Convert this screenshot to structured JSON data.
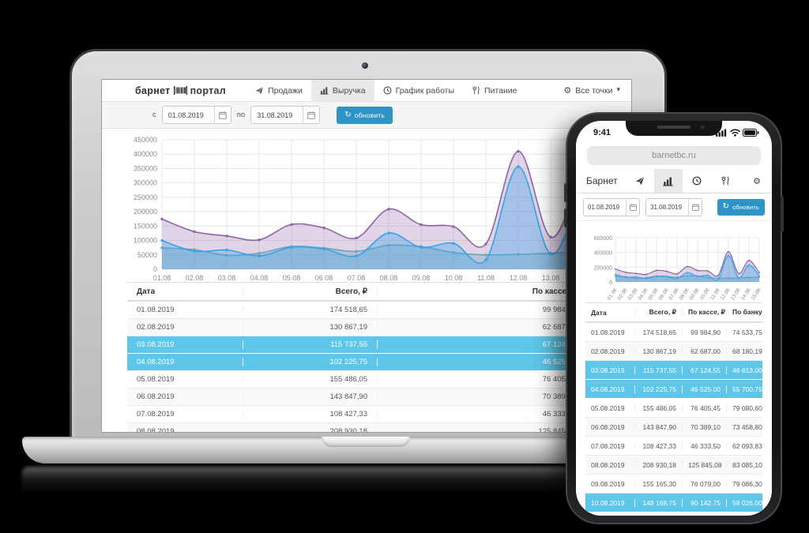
{
  "colors": {
    "accent_blue": "#2e94c5",
    "row_highlight": "#5ec6e9",
    "page_background": "#000000"
  },
  "laptop": {
    "nav": {
      "brand_left": "барнет",
      "brand_right": "портал",
      "tabs": [
        {
          "label": "Продажи",
          "icon": "dart",
          "active": false
        },
        {
          "label": "Выручка",
          "icon": "bar-chart",
          "active": true
        },
        {
          "label": "График работы",
          "icon": "clock",
          "active": false
        },
        {
          "label": "Питание",
          "icon": "utensils",
          "active": false
        }
      ],
      "points_label": "Все точки"
    },
    "filters": {
      "from_label": "с",
      "from_value": "01.08.2019",
      "to_label": "по",
      "to_value": "31.08.2019",
      "refresh_label": "обновить"
    },
    "table": {
      "visible_columns": 3,
      "visible_rows": 8,
      "highlighted_rows": [
        2,
        3
      ]
    }
  },
  "phone": {
    "status": {
      "time": "9:41"
    },
    "url": "barnetbc.ru",
    "nav": {
      "brand": "Барнет"
    },
    "filters": {
      "from_value": "01.08.2019",
      "to_value": "31.08.2019",
      "refresh_label": "обновить"
    },
    "table": {
      "visible_columns": 4,
      "visible_rows": 10,
      "highlighted_rows": [
        2,
        3,
        9
      ]
    }
  },
  "revenue_table": {
    "headers": [
      "Дата",
      "Всего, ₽",
      "По кассе, ₽",
      "По банку, ₽"
    ],
    "rows": [
      [
        "01.08.2019",
        "174 518,65",
        "99 984,90",
        "74 533,75"
      ],
      [
        "02.08.2019",
        "130 867,19",
        "62 687,00",
        "68 180,19"
      ],
      [
        "03.08.2019",
        "115 737,55",
        "67 124,55",
        "48 613,00"
      ],
      [
        "04.08.2019",
        "102 225,75",
        "46 525,00",
        "55 700,75"
      ],
      [
        "05.08.2019",
        "155 486,05",
        "76 405,45",
        "79 080,60"
      ],
      [
        "06.08.2019",
        "143 847,90",
        "70 389,10",
        "73 458,80"
      ],
      [
        "07.08.2019",
        "108 427,33",
        "46 333,50",
        "62 093,83"
      ],
      [
        "08.08.2019",
        "208 930,18",
        "125 845,08",
        "83 085,10"
      ],
      [
        "09.08.2019",
        "155 165,30",
        "76 079,00",
        "79 086,30"
      ],
      [
        "10.08.2019",
        "148 168,75",
        "90 142,75",
        "58 026,00"
      ]
    ],
    "highlighted_rows": [
      2,
      3,
      9
    ]
  },
  "chart_data": {
    "type": "area",
    "title": "",
    "xlabel": "",
    "ylabel": "",
    "x": [
      "01.08",
      "02.08",
      "03.08",
      "04.08",
      "05.08",
      "06.08",
      "07.08",
      "08.08",
      "09.08",
      "10.08",
      "11.08",
      "12.08",
      "13.08",
      "14.08",
      "15.08"
    ],
    "series": [
      {
        "name": "Всего",
        "color": "#9063a6",
        "fill": "rgba(144,99,166,0.28)",
        "values": [
          174518,
          130867,
          115737,
          102225,
          155486,
          143847,
          108427,
          208930,
          155165,
          148168,
          88000,
          410000,
          112000,
          290000,
          125000
        ]
      },
      {
        "name": "По банку",
        "color": "#6fa3b7",
        "fill": "rgba(111,163,183,0.35)",
        "values": [
          74533,
          68180,
          48613,
          55700,
          79080,
          73458,
          62093,
          83085,
          79086,
          58026,
          50000,
          52000,
          56000,
          60000,
          64000
        ]
      },
      {
        "name": "По кассе",
        "color": "#36a2eb",
        "fill": "rgba(54,162,235,0.35)",
        "values": [
          99984,
          62687,
          67124,
          46525,
          76405,
          70389,
          46333,
          125845,
          76079,
          90142,
          33000,
          357000,
          53000,
          230000,
          80000
        ]
      }
    ],
    "grid": true,
    "legend": "none",
    "laptop_axis": {
      "ylim": [
        0,
        450000
      ],
      "ytick_step": 50000
    },
    "phone_axis": {
      "ylim": [
        0,
        600000
      ],
      "yticks": [
        0,
        200000,
        400000,
        600000
      ]
    }
  }
}
